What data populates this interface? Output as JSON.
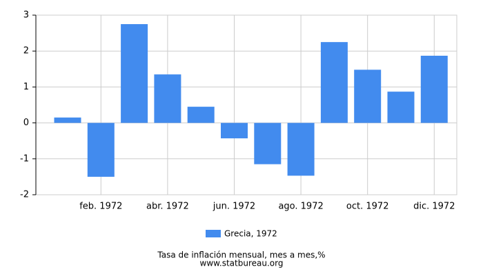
{
  "chart_data": {
    "type": "bar",
    "title": "Tasa de inflación mensual, mes a mes,%",
    "source": "www.statbureau.org",
    "categories": [
      null,
      "feb. 1972",
      null,
      "abr. 1972",
      null,
      "jun. 1972",
      null,
      "ago. 1972",
      null,
      "oct. 1972",
      null,
      "dic. 1972"
    ],
    "series": [
      {
        "name": "Grecia, 1972",
        "color": "#428bee",
        "values": [
          0.15,
          -1.5,
          2.75,
          1.35,
          0.45,
          -0.43,
          -1.15,
          -1.47,
          2.25,
          1.48,
          0.87,
          1.87
        ]
      }
    ],
    "ylim": [
      -2,
      3
    ],
    "yticks": [
      -2,
      -1,
      0,
      1,
      2,
      3
    ],
    "grid": true
  }
}
